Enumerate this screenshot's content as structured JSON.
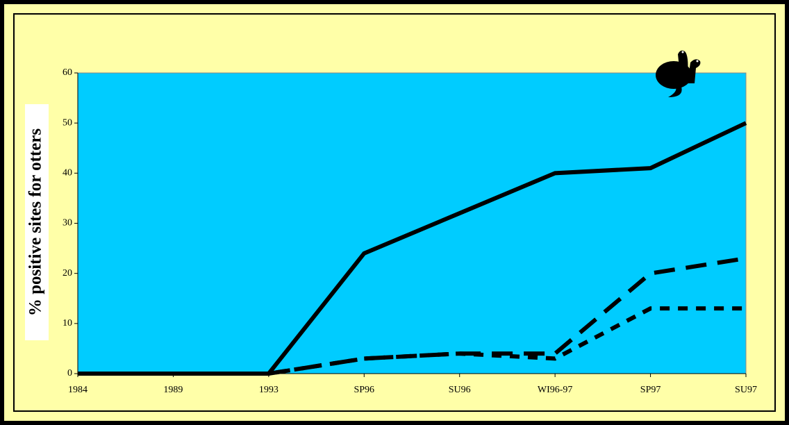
{
  "chart_data": {
    "type": "line",
    "y_label": "% positive sites for otters",
    "categories": [
      "1984",
      "1989",
      "1993",
      "SP96",
      "SU96",
      "WI96-97",
      "SP97",
      "SU97"
    ],
    "series": [
      {
        "color": "#000000",
        "style": "solid",
        "values": [
          0,
          0,
          0,
          24,
          32,
          40,
          41,
          50
        ]
      },
      {
        "color": "#000000",
        "style": "long-dash",
        "values": [
          0,
          0,
          0,
          3,
          4,
          4,
          20,
          23
        ]
      },
      {
        "color": "#000000",
        "style": "short-dash",
        "values": [
          0,
          0,
          0,
          3,
          4,
          3,
          13,
          13
        ]
      }
    ],
    "ylim": [
      0,
      60
    ],
    "yticks": [
      0,
      10,
      20,
      30,
      40,
      50,
      60
    ],
    "plot_color": "#00ccff",
    "background": "#ffffa8"
  }
}
